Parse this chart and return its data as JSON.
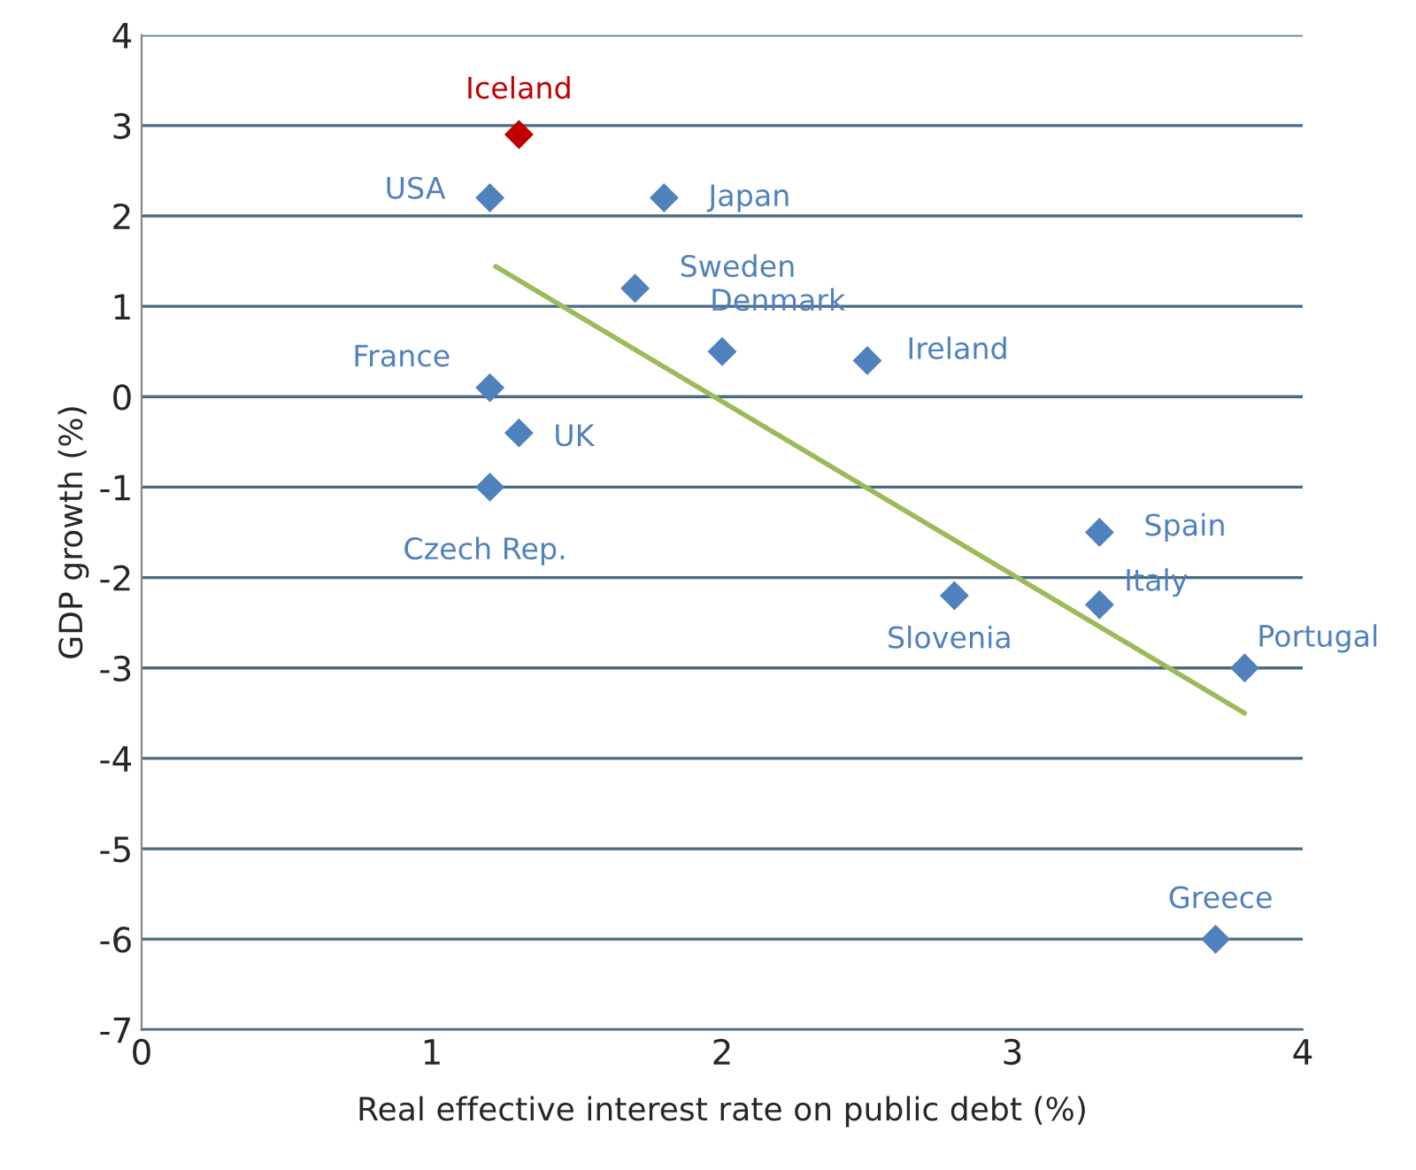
{
  "chart_data": {
    "type": "scatter",
    "xlabel": "Real effective interest rate on public debt (%)",
    "ylabel": "GDP growth (%)",
    "xlim": [
      0,
      4
    ],
    "xticks": [
      0,
      1,
      2,
      3,
      4
    ],
    "ylim": [
      -7,
      4
    ],
    "yticks": [
      -7,
      -6,
      -5,
      -4,
      -3,
      -2,
      -1,
      0,
      1,
      2,
      3,
      4
    ],
    "grid": "y",
    "legend": false,
    "marker": "diamond",
    "series": [
      {
        "name": "Iceland",
        "color": "#c00000",
        "x": [
          1.3
        ],
        "values": [
          2.9
        ]
      },
      {
        "name": "USA",
        "color": "#4f81bd",
        "x": [
          1.2
        ],
        "values": [
          2.2
        ]
      },
      {
        "name": "Japan",
        "color": "#4f81bd",
        "x": [
          1.8
        ],
        "values": [
          2.2
        ]
      },
      {
        "name": "Sweden",
        "color": "#4f81bd",
        "x": [
          1.7
        ],
        "values": [
          1.2
        ]
      },
      {
        "name": "Denmark",
        "color": "#4f81bd",
        "x": [
          2.0
        ],
        "values": [
          0.5
        ]
      },
      {
        "name": "Ireland",
        "color": "#4f81bd",
        "x": [
          2.5
        ],
        "values": [
          0.4
        ]
      },
      {
        "name": "France",
        "color": "#4f81bd",
        "x": [
          1.2
        ],
        "values": [
          0.1
        ]
      },
      {
        "name": "UK",
        "color": "#4f81bd",
        "x": [
          1.3
        ],
        "values": [
          -0.4
        ]
      },
      {
        "name": "Czech Rep.",
        "color": "#4f81bd",
        "x": [
          1.2
        ],
        "values": [
          -1.0
        ]
      },
      {
        "name": "Spain",
        "color": "#4f81bd",
        "x": [
          3.3
        ],
        "values": [
          -1.5
        ]
      },
      {
        "name": "Slovenia",
        "color": "#4f81bd",
        "x": [
          2.8
        ],
        "values": [
          -2.2
        ]
      },
      {
        "name": "Italy",
        "color": "#4f81bd",
        "x": [
          3.3
        ],
        "values": [
          -2.3
        ]
      },
      {
        "name": "Portugal",
        "color": "#4f81bd",
        "x": [
          3.8
        ],
        "values": [
          -3.0
        ]
      },
      {
        "name": "Greece",
        "color": "#4f81bd",
        "x": [
          3.7
        ],
        "values": [
          -6.0
        ]
      },
      {
        "type": "line",
        "marker": "none",
        "color": "#9bbb59",
        "x": [
          1.22,
          3.8
        ],
        "values": [
          1.44,
          -3.5
        ]
      }
    ]
  }
}
